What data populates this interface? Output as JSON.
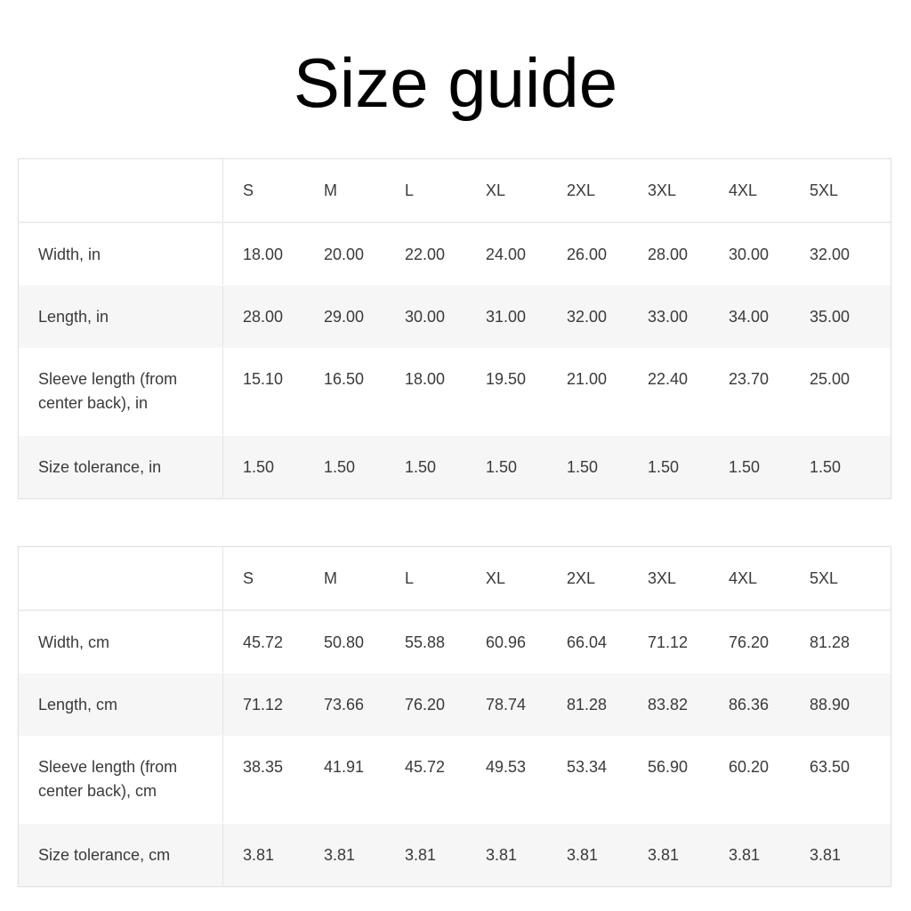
{
  "title": "Size guide",
  "tables": [
    {
      "sizes": [
        "S",
        "M",
        "L",
        "XL",
        "2XL",
        "3XL",
        "4XL",
        "5XL"
      ],
      "rows": [
        {
          "label": "Width, in",
          "values": [
            "18.00",
            "20.00",
            "22.00",
            "24.00",
            "26.00",
            "28.00",
            "30.00",
            "32.00"
          ]
        },
        {
          "label": "Length, in",
          "values": [
            "28.00",
            "29.00",
            "30.00",
            "31.00",
            "32.00",
            "33.00",
            "34.00",
            "35.00"
          ]
        },
        {
          "label": "Sleeve length (from center back), in",
          "values": [
            "15.10",
            "16.50",
            "18.00",
            "19.50",
            "21.00",
            "22.40",
            "23.70",
            "25.00"
          ]
        },
        {
          "label": "Size tolerance, in",
          "values": [
            "1.50",
            "1.50",
            "1.50",
            "1.50",
            "1.50",
            "1.50",
            "1.50",
            "1.50"
          ]
        }
      ]
    },
    {
      "sizes": [
        "S",
        "M",
        "L",
        "XL",
        "2XL",
        "3XL",
        "4XL",
        "5XL"
      ],
      "rows": [
        {
          "label": "Width, cm",
          "values": [
            "45.72",
            "50.80",
            "55.88",
            "60.96",
            "66.04",
            "71.12",
            "76.20",
            "81.28"
          ]
        },
        {
          "label": "Length, cm",
          "values": [
            "71.12",
            "73.66",
            "76.20",
            "78.74",
            "81.28",
            "83.82",
            "86.36",
            "88.90"
          ]
        },
        {
          "label": "Sleeve length (from center back), cm",
          "values": [
            "38.35",
            "41.91",
            "45.72",
            "49.53",
            "53.34",
            "56.90",
            "60.20",
            "63.50"
          ]
        },
        {
          "label": "Size tolerance, cm",
          "values": [
            "3.81",
            "3.81",
            "3.81",
            "3.81",
            "3.81",
            "3.81",
            "3.81",
            "3.81"
          ]
        }
      ]
    }
  ]
}
